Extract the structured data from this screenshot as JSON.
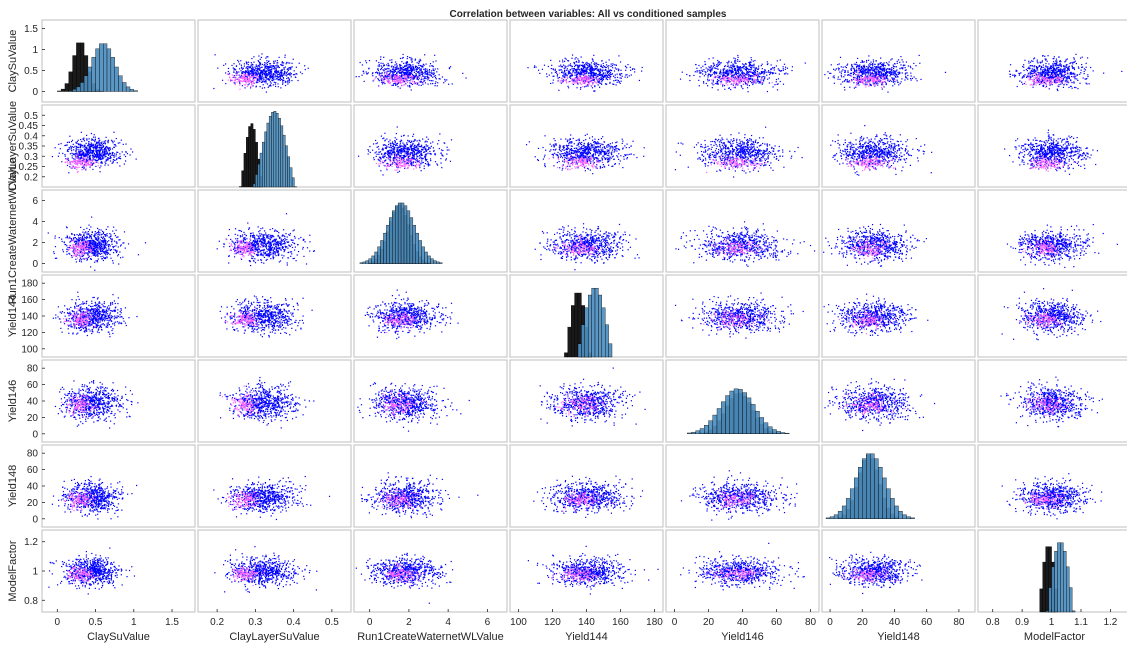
{
  "chart_data": {
    "type": "scatter",
    "title": "Correlation between variables: All vs conditioned samples",
    "variables": [
      {
        "name": "ClaySuValue",
        "xlim": [
          -0.2,
          1.8
        ],
        "xticks": [
          0,
          0.5,
          1,
          1.5
        ],
        "ylim": [
          -0.25,
          1.7
        ],
        "yticks": [
          0,
          0.5,
          1,
          1.5
        ],
        "hist": {
          "bin_width": 0.05,
          "all_peak": {
            "x": 0.6,
            "height": 1.15
          },
          "cond_peak": {
            "x": 0.3,
            "height": 1.2
          }
        },
        "scatter": {
          "all_center": 0.45,
          "all_spread": 0.15,
          "cond_center": 0.3,
          "cond_spread": 0.07
        }
      },
      {
        "name": "ClayLayerSuValue",
        "xlim": [
          0.15,
          0.55
        ],
        "xticks": [
          0.2,
          0.3,
          0.4,
          0.5
        ],
        "ylim": [
          0.15,
          0.55
        ],
        "yticks": [
          0.2,
          0.25,
          0.3,
          0.35,
          0.4,
          0.45,
          0.5
        ],
        "hist": {
          "bin_width": 0.006,
          "all_peak": {
            "x": 0.35,
            "height": 0.52
          },
          "cond_peak": {
            "x": 0.29,
            "height": 0.46
          }
        },
        "scatter": {
          "all_center": 0.32,
          "all_spread": 0.035,
          "cond_center": 0.27,
          "cond_spread": 0.015
        }
      },
      {
        "name": "Run1CreateWaternetWLValue",
        "xlim": [
          -0.8,
          7
        ],
        "xticks": [
          0,
          2,
          4,
          6
        ],
        "ylim": [
          -0.8,
          7
        ],
        "yticks": [
          0,
          2,
          4,
          6
        ],
        "hist": {
          "bin_width": 0.15,
          "all_peak": {
            "x": 1.6,
            "height": 5.8
          },
          "cond_peak": {
            "x": 1.5,
            "height": 5.6
          }
        },
        "scatter": {
          "all_center": 1.8,
          "all_spread": 0.7,
          "cond_center": 1.5,
          "cond_spread": 0.4
        }
      },
      {
        "name": "Yield144",
        "xlim": [
          95,
          185
        ],
        "xticks": [
          100,
          120,
          140,
          160,
          180
        ],
        "ylim": [
          90,
          190
        ],
        "yticks": [
          100,
          120,
          140,
          160,
          180
        ],
        "hist": {
          "bin_width": 2,
          "all_peak": {
            "x": 145,
            "height": 175
          },
          "cond_peak": {
            "x": 135,
            "height": 170
          }
        },
        "scatter": {
          "all_center": 140,
          "all_spread": 9,
          "cond_center": 136,
          "cond_spread": 5
        }
      },
      {
        "name": "Yield146",
        "xlim": [
          -5,
          85
        ],
        "xticks": [
          0,
          20,
          40,
          60,
          80
        ],
        "ylim": [
          -10,
          90
        ],
        "yticks": [
          0,
          20,
          40,
          60,
          80
        ],
        "hist": {
          "bin_width": 2.5,
          "all_peak": {
            "x": 37,
            "height": 55
          },
          "cond_peak": {
            "x": 38,
            "height": 50
          }
        },
        "scatter": {
          "all_center": 38,
          "all_spread": 10,
          "cond_center": 36,
          "cond_spread": 6
        }
      },
      {
        "name": "Yield148",
        "xlim": [
          -5,
          90
        ],
        "xticks": [
          0,
          20,
          40,
          60,
          80
        ],
        "ylim": [
          -10,
          90
        ],
        "yticks": [
          0,
          20,
          40,
          60,
          80
        ],
        "hist": {
          "bin_width": 2.5,
          "all_peak": {
            "x": 25,
            "height": 80
          },
          "cond_peak": {
            "x": 24,
            "height": 78
          }
        },
        "scatter": {
          "all_center": 27,
          "all_spread": 9,
          "cond_center": 24,
          "cond_spread": 5
        }
      },
      {
        "name": "ModelFactor",
        "xlim": [
          0.75,
          1.27
        ],
        "xticks": [
          0.8,
          0.9,
          1,
          1.1,
          1.2
        ],
        "ylim": [
          0.72,
          1.28
        ],
        "yticks": [
          0.8,
          1,
          1.2
        ],
        "hist": {
          "bin_width": 0.01,
          "all_peak": {
            "x": 1.03,
            "height": 1.2
          },
          "cond_peak": {
            "x": 0.99,
            "height": 1.18
          }
        },
        "scatter": {
          "all_center": 1.0,
          "all_spread": 0.045,
          "cond_center": 0.98,
          "cond_spread": 0.025
        }
      }
    ],
    "series": [
      {
        "color": "#0000ff"
      },
      {
        "color": "#ff66ff"
      }
    ],
    "hist_colors": {
      "all": "#4d8fbf",
      "conditioned": "#1a1a1a"
    },
    "grid": false
  }
}
